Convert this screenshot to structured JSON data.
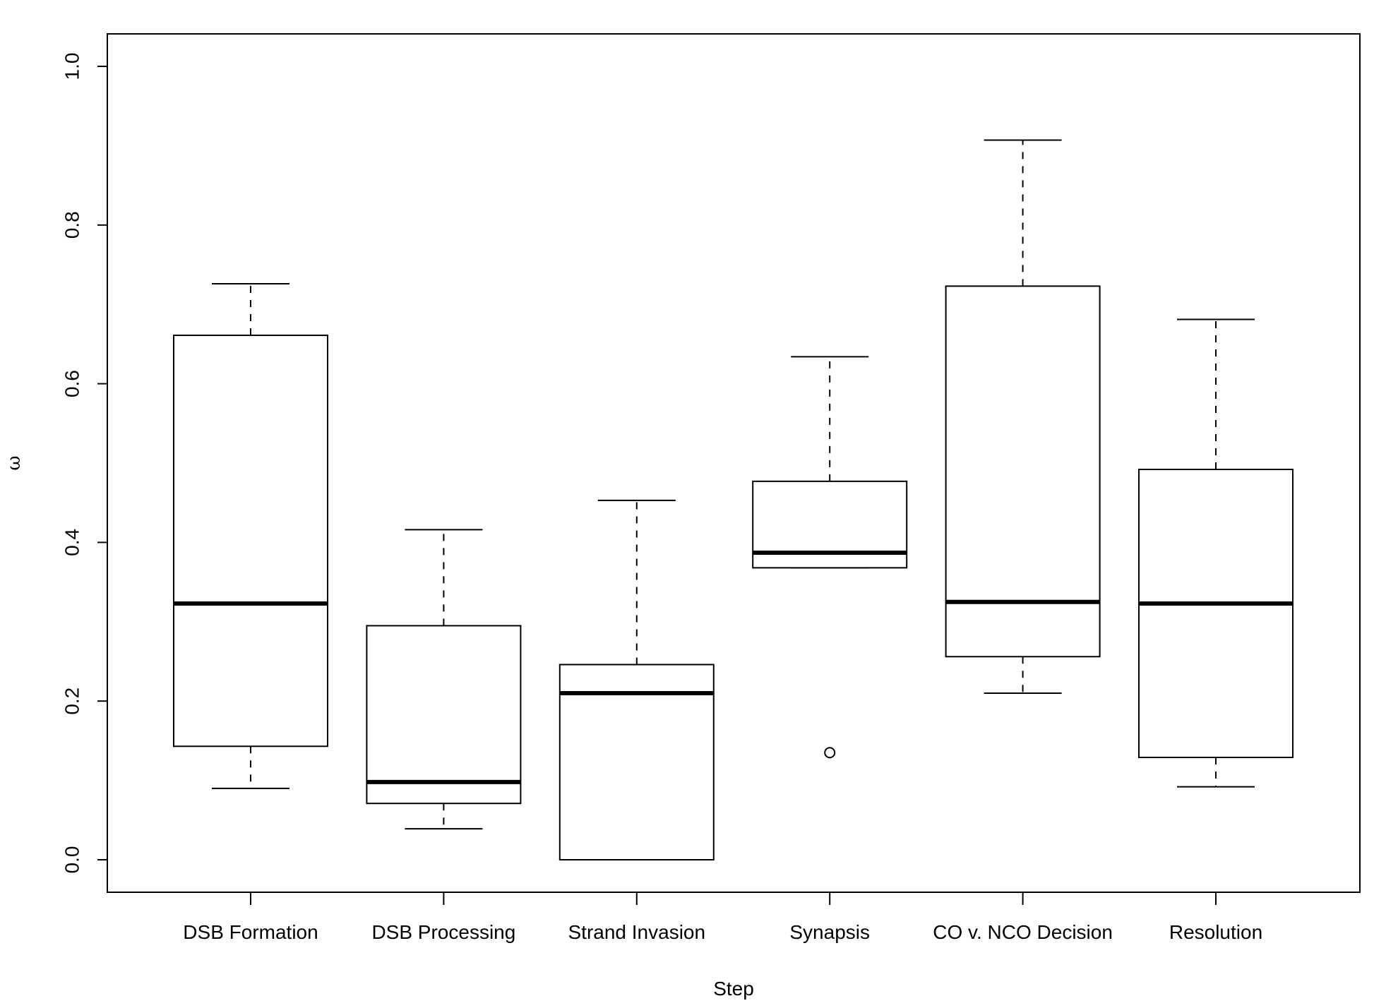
{
  "chart_data": {
    "type": "boxplot",
    "title": "",
    "xlabel": "Step",
    "ylabel": "ω",
    "ylim": [
      0.0,
      1.0
    ],
    "yticks": [
      0.0,
      0.2,
      0.4,
      0.6,
      0.8,
      1.0
    ],
    "ytick_labels": [
      "0.0",
      "0.2",
      "0.4",
      "0.6",
      "0.8",
      "1.0"
    ],
    "grid": false,
    "legend": "none",
    "categories": [
      "DSB Formation",
      "DSB Processing",
      "Strand Invasion",
      "Synapsis",
      "CO v. NCO Decision",
      "Resolution"
    ],
    "boxes": [
      {
        "category": "DSB Formation",
        "whisker_low": 0.09,
        "q1": 0.143,
        "median": 0.323,
        "q3": 0.661,
        "whisker_high": 0.726,
        "outliers": []
      },
      {
        "category": "DSB Processing",
        "whisker_low": 0.039,
        "q1": 0.071,
        "median": 0.098,
        "q3": 0.295,
        "whisker_high": 0.416,
        "outliers": []
      },
      {
        "category": "Strand Invasion",
        "whisker_low": 0.0,
        "q1": 0.0,
        "median": 0.21,
        "q3": 0.246,
        "whisker_high": 0.453,
        "outliers": []
      },
      {
        "category": "Synapsis",
        "whisker_low": 0.368,
        "q1": 0.368,
        "median": 0.387,
        "q3": 0.477,
        "whisker_high": 0.634,
        "outliers": [
          0.135
        ]
      },
      {
        "category": "CO v. NCO Decision",
        "whisker_low": 0.21,
        "q1": 0.256,
        "median": 0.325,
        "q3": 0.723,
        "whisker_high": 0.907,
        "outliers": []
      },
      {
        "category": "Resolution",
        "whisker_low": 0.092,
        "q1": 0.129,
        "median": 0.323,
        "q3": 0.492,
        "whisker_high": 0.681,
        "outliers": []
      }
    ]
  }
}
